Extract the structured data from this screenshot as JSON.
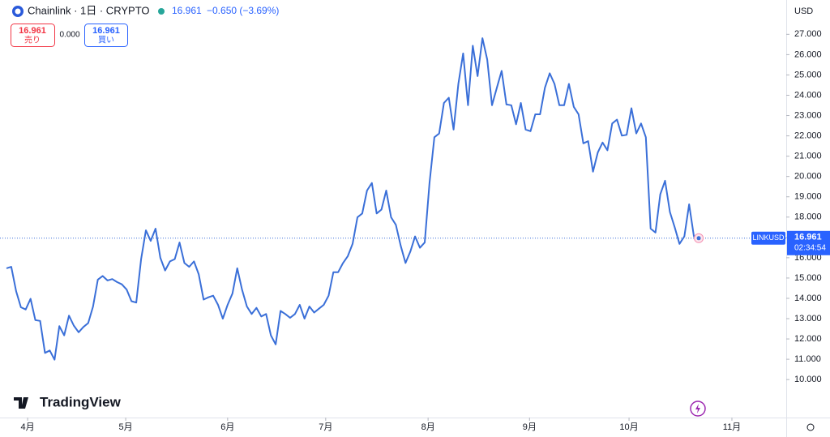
{
  "chart_data": {
    "type": "line",
    "title": "Chainlink · 1日 · CRYPTO",
    "last_price": "16.961",
    "change": "−0.650 (−3.69%)",
    "symbol": "LINKUSD",
    "countdown": "02:34:54",
    "currency": "USD",
    "color": "#3a6fd8",
    "values": [
      15.48,
      15.55,
      14.35,
      13.56,
      13.45,
      13.98,
      12.93,
      12.89,
      11.31,
      11.43,
      10.98,
      12.63,
      12.18,
      13.15,
      12.66,
      12.33,
      12.59,
      12.78,
      13.6,
      14.92,
      15.1,
      14.88,
      14.95,
      14.8,
      14.69,
      14.43,
      13.86,
      13.79,
      15.93,
      17.35,
      16.83,
      17.43,
      16.0,
      15.37,
      15.82,
      15.93,
      16.75,
      15.74,
      15.55,
      15.82,
      15.18,
      13.94,
      14.05,
      14.13,
      13.68,
      13.0,
      13.68,
      14.24,
      15.48,
      14.43,
      13.6,
      13.23,
      13.53,
      13.11,
      13.23,
      12.18,
      11.73,
      13.38,
      13.23,
      13.04,
      13.23,
      13.68,
      13.0,
      13.6,
      13.3,
      13.49,
      13.68,
      14.13,
      15.29,
      15.29,
      15.74,
      16.08,
      16.68,
      17.99,
      18.18,
      19.31,
      19.68,
      18.18,
      18.37,
      19.31,
      17.99,
      17.62,
      16.6,
      15.74,
      16.3,
      17.05,
      16.49,
      16.75,
      19.68,
      21.93,
      22.12,
      23.62,
      23.88,
      22.31,
      24.56,
      26.06,
      23.51,
      26.44,
      24.94,
      26.81,
      25.76,
      23.51,
      24.37,
      25.2,
      23.55,
      23.51,
      22.57,
      23.62,
      22.31,
      22.23,
      23.06,
      23.06,
      24.37,
      25.08,
      24.56,
      23.51,
      23.51,
      24.56,
      23.43,
      23.06,
      21.63,
      21.74,
      20.24,
      21.18,
      21.67,
      21.29,
      22.61,
      22.8,
      22.01,
      22.05,
      23.36,
      22.12,
      22.61,
      21.93,
      17.43,
      17.24,
      19.12,
      19.79,
      18.25,
      17.5,
      16.68,
      17.05,
      18.63,
      17.05,
      16.961
    ],
    "xlim": [
      -1.35,
      162.2
    ],
    "xticks": [
      {
        "value": 4.4,
        "label": "4月"
      },
      {
        "value": 24.8,
        "label": "5月"
      },
      {
        "value": 46,
        "label": "6月"
      },
      {
        "value": 66.4,
        "label": "7月"
      },
      {
        "value": 87.7,
        "label": "8月"
      },
      {
        "value": 108.8,
        "label": "9月"
      },
      {
        "value": 129.5,
        "label": "10月"
      },
      {
        "value": 150.9,
        "label": "11月"
      }
    ],
    "ylim": [
      8.13,
      28.69
    ],
    "yticks": [
      {
        "value": 10,
        "label": "10.000"
      },
      {
        "value": 11,
        "label": "11.000"
      },
      {
        "value": 12,
        "label": "12.000"
      },
      {
        "value": 13,
        "label": "13.000"
      },
      {
        "value": 14,
        "label": "14.000"
      },
      {
        "value": 15,
        "label": "15.000"
      },
      {
        "value": 16,
        "label": "16.000"
      },
      {
        "value": 17,
        "label": "17.000"
      },
      {
        "value": 18,
        "label": "18.000"
      },
      {
        "value": 19,
        "label": "19.000"
      },
      {
        "value": 20,
        "label": "20.000"
      },
      {
        "value": 21,
        "label": "21.000"
      },
      {
        "value": 22,
        "label": "22.000"
      },
      {
        "value": 23,
        "label": "23.000"
      },
      {
        "value": 24,
        "label": "24.000"
      },
      {
        "value": 25,
        "label": "25.000"
      },
      {
        "value": 26,
        "label": "26.000"
      },
      {
        "value": 27,
        "label": "27.000"
      }
    ]
  },
  "trade": {
    "sell_price": "16.961",
    "sell_label": "売り",
    "spread": "0.000",
    "buy_price": "16.961",
    "buy_label": "買い"
  },
  "brand": "TradingView"
}
